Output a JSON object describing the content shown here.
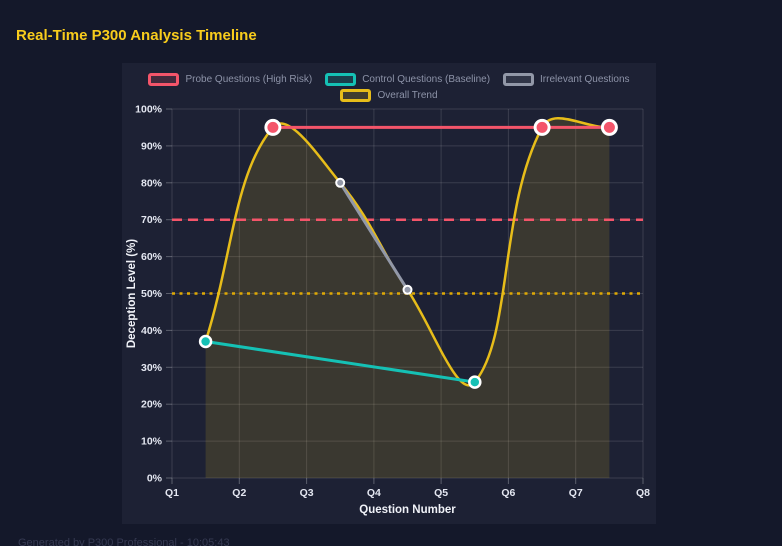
{
  "page": {
    "title": "Real-Time P300 Analysis Timeline",
    "footer": "Generated by P300 Professional - 10:05:43"
  },
  "colors": {
    "page_bg": "#14182a",
    "panel_bg": "#1d2134",
    "grid": "rgba(255,255,255,0.13)",
    "tick_mark": "rgba(255,255,255,0.28)",
    "tick_text": "#e4e7f1",
    "axis_title": "#f0f2f8",
    "legend_text": "#8d93a8",
    "title_text": "#f8cc1c",
    "footer_text": "#363a52",
    "point_border": "#ffffff",
    "area_fill": "rgba(231,189,26,0.15)"
  },
  "chart_data": {
    "type": "line",
    "title": "Real-Time P300 Analysis Timeline",
    "xlabel": "Question Number",
    "ylabel": "Deception Level (%)",
    "x_tick_labels": [
      "Q1",
      "Q2",
      "Q3",
      "Q4",
      "Q5",
      "Q6",
      "Q7",
      "Q8"
    ],
    "x_tick_values": [
      1,
      2,
      3,
      4,
      5,
      6,
      7,
      8
    ],
    "xlim": [
      1,
      8
    ],
    "y_tick_labels": [
      "0%",
      "10%",
      "20%",
      "30%",
      "40%",
      "50%",
      "60%",
      "70%",
      "80%",
      "90%",
      "100%"
    ],
    "y_tick_values": [
      0,
      10,
      20,
      30,
      40,
      50,
      60,
      70,
      80,
      90,
      100
    ],
    "ylim": [
      0,
      100
    ],
    "grid": true,
    "legend_position": "top",
    "series": [
      {
        "name": "Probe Questions (High Risk)",
        "color": "#f4556a",
        "x": [
          2.5,
          6.5,
          7.5
        ],
        "y": [
          95,
          95,
          95
        ],
        "line_width": 3,
        "point_radius": 7,
        "point_border_width": 3,
        "smooth": false,
        "fill": false
      },
      {
        "name": "Control Questions (Baseline)",
        "color": "#15c1b5",
        "x": [
          1.5,
          5.5
        ],
        "y": [
          37,
          26
        ],
        "line_width": 3,
        "point_radius": 5.5,
        "point_border_width": 2.5,
        "smooth": false,
        "fill": false
      },
      {
        "name": "Irrelevant Questions",
        "color": "#9298a8",
        "x": [
          3.5,
          4.5
        ],
        "y": [
          80,
          51
        ],
        "line_width": 3,
        "point_radius": 4,
        "point_border_width": 2,
        "smooth": false,
        "fill": false
      },
      {
        "name": "Overall Trend",
        "color": "#e7bd1a",
        "x": [
          1.5,
          2.5,
          3.5,
          4.5,
          5.5,
          6.5,
          7.5
        ],
        "y": [
          37,
          95,
          80,
          51,
          26,
          95,
          95
        ],
        "line_width": 2.5,
        "point_radius": 0,
        "point_border_width": 0,
        "smooth": true,
        "fill": true
      }
    ],
    "thresholds": [
      {
        "value": 70,
        "color": "#f4556a",
        "dash": [
          10,
          6
        ],
        "width": 2.5
      },
      {
        "value": 50,
        "color": "#dfa905",
        "dash": [
          3,
          4.5
        ],
        "width": 2.5
      }
    ]
  }
}
